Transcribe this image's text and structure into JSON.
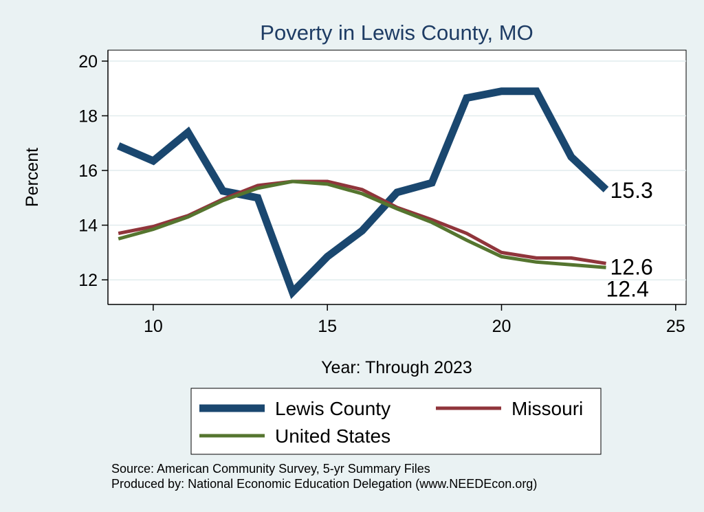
{
  "chart_data": {
    "type": "line",
    "title": "Poverty in Lewis County, MO",
    "xlabel": "Year: Through 2023",
    "ylabel": "Percent",
    "xlim": [
      8.7,
      25.3
    ],
    "ylim": [
      11.1,
      20.4
    ],
    "xticks": [
      10,
      15,
      20,
      25
    ],
    "yticks": [
      12,
      14,
      16,
      18,
      20
    ],
    "grid": "horizontal",
    "legend_position": "bottom",
    "series": [
      {
        "name": "Lewis County",
        "color": "#1a476f",
        "x": [
          9,
          10,
          11,
          12,
          13,
          14,
          15,
          16,
          17,
          18,
          19,
          20,
          21,
          22,
          23
        ],
        "values": [
          16.9,
          16.35,
          17.4,
          15.25,
          15.0,
          11.55,
          12.85,
          13.8,
          15.2,
          15.55,
          18.65,
          18.9,
          18.9,
          16.5,
          15.3
        ],
        "end_label": "15.3"
      },
      {
        "name": "Missouri",
        "color": "#90353b",
        "x": [
          9,
          10,
          11,
          12,
          13,
          14,
          15,
          16,
          17,
          18,
          19,
          20,
          21,
          22,
          23
        ],
        "values": [
          13.7,
          13.95,
          14.35,
          14.95,
          15.45,
          15.6,
          15.6,
          15.3,
          14.65,
          14.2,
          13.7,
          13.0,
          12.8,
          12.8,
          12.6
        ],
        "end_label": "12.6"
      },
      {
        "name": "United States",
        "color": "#55752f",
        "x": [
          9,
          10,
          11,
          12,
          13,
          14,
          15,
          16,
          17,
          18,
          19,
          20,
          21,
          22,
          23
        ],
        "values": [
          13.5,
          13.85,
          14.3,
          14.9,
          15.35,
          15.6,
          15.5,
          15.15,
          14.6,
          14.1,
          13.45,
          12.85,
          12.65,
          12.55,
          12.45
        ],
        "end_label": "12.4"
      }
    ]
  },
  "source_line_1": "Source: American Community Survey, 5-yr Summary Files",
  "source_line_2": "Produced by: National Economic Education Delegation (www.NEEDEcon.org)"
}
